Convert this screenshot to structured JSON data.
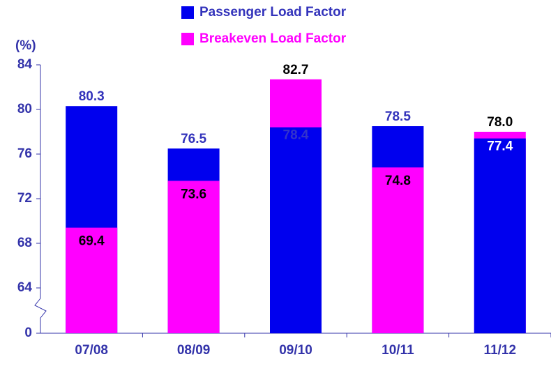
{
  "chart_data": {
    "type": "bar",
    "y_axis_label": "(%)",
    "categories": [
      "07/08",
      "08/09",
      "09/10",
      "10/11",
      "11/12"
    ],
    "series": [
      {
        "name": "Passenger Load Factor",
        "color": "#0000ee",
        "values": [
          80.3,
          76.5,
          78.4,
          78.5,
          77.4
        ]
      },
      {
        "name": "Breakeven Load Factor",
        "color": "#ff00ff",
        "values": [
          69.4,
          73.6,
          82.7,
          74.8,
          78.0
        ],
        "value_labels": [
          "69.4",
          "73.6",
          "82.7",
          "74.8",
          "78.0"
        ]
      }
    ],
    "ylim": [
      0,
      84
    ],
    "yticks": [
      0,
      64,
      68,
      72,
      76,
      80,
      84
    ],
    "axis_break": [
      0,
      64
    ],
    "legend": "top"
  }
}
